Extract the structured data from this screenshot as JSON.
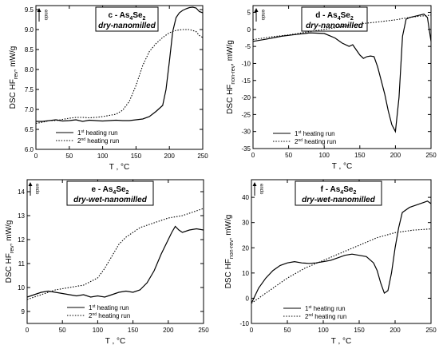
{
  "chart_data": [
    {
      "type": "line",
      "panel_label": "c - As",
      "panel_sub": "4",
      "panel_label_tail": "Se",
      "panel_sub2": "2",
      "subtitle": "dry-nanomilled",
      "endo_label": "endo",
      "xlabel": "T  ,  °C",
      "ylabel_main": "DSC  HF",
      "ylabel_sub": "rev",
      "ylabel_unit": ",  mW/g",
      "xlim": [
        0,
        250
      ],
      "ylim": [
        6.0,
        9.6
      ],
      "xticks": [
        "0",
        "50",
        "100",
        "150",
        "200",
        "250"
      ],
      "yticks": [
        "6.0",
        "6.5",
        "7.0",
        "7.5",
        "8.0",
        "8.5",
        "9.0",
        "9.5"
      ],
      "legend_position": "bottom-left",
      "series": [
        {
          "name": "1st heating run",
          "name_main": "1",
          "name_sup": "st",
          "name_tail": " heating run",
          "style": "solid",
          "x": [
            0,
            10,
            20,
            30,
            40,
            50,
            60,
            70,
            80,
            90,
            100,
            110,
            120,
            130,
            140,
            150,
            160,
            170,
            180,
            190,
            195,
            200,
            205,
            210,
            215,
            220,
            225,
            230,
            235,
            240,
            245,
            250
          ],
          "y": [
            6.7,
            6.7,
            6.72,
            6.74,
            6.71,
            6.72,
            6.74,
            6.7,
            6.73,
            6.72,
            6.71,
            6.72,
            6.73,
            6.72,
            6.72,
            6.74,
            6.76,
            6.82,
            6.95,
            7.1,
            7.5,
            8.2,
            8.95,
            9.3,
            9.42,
            9.48,
            9.52,
            9.55,
            9.56,
            9.54,
            9.45,
            9.42
          ]
        },
        {
          "name": "2nd heating run",
          "name_main": "2",
          "name_sup": "nd",
          "name_tail": " heating run",
          "style": "dotted",
          "x": [
            0,
            10,
            20,
            30,
            40,
            50,
            60,
            70,
            80,
            90,
            100,
            110,
            120,
            130,
            140,
            150,
            160,
            170,
            180,
            190,
            200,
            210,
            220,
            230,
            240,
            245,
            250
          ],
          "y": [
            6.65,
            6.68,
            6.72,
            6.72,
            6.75,
            6.78,
            6.8,
            6.8,
            6.79,
            6.8,
            6.82,
            6.85,
            6.88,
            6.98,
            7.2,
            7.6,
            8.1,
            8.45,
            8.65,
            8.8,
            8.92,
            8.98,
            9.0,
            9.0,
            8.95,
            8.85,
            8.8
          ]
        }
      ]
    },
    {
      "type": "line",
      "panel_label": "d - As",
      "panel_sub": "4",
      "panel_label_tail": "Se",
      "panel_sub2": "2",
      "subtitle": "dry-nanomilled",
      "endo_label": "endo",
      "xlabel": "T  ,  °C",
      "ylabel_main": "DSC  HF",
      "ylabel_sub": "non-rev",
      "ylabel_unit": ",  mW/g",
      "xlim": [
        0,
        250
      ],
      "ylim": [
        -35,
        7
      ],
      "xticks": [
        "0",
        "50",
        "100",
        "150",
        "200",
        "250"
      ],
      "yticks": [
        "-35",
        "-30",
        "-25",
        "-20",
        "-15",
        "-10",
        "-5",
        "0",
        "5"
      ],
      "legend_position": "bottom-left",
      "series": [
        {
          "name": "1st heating run",
          "name_main": "1",
          "name_sup": "st",
          "name_tail": " heating run",
          "style": "solid",
          "x": [
            0,
            20,
            40,
            60,
            80,
            100,
            115,
            125,
            135,
            140,
            145,
            150,
            155,
            160,
            165,
            170,
            175,
            180,
            185,
            190,
            195,
            200,
            205,
            210,
            215,
            220,
            230,
            240,
            245,
            250
          ],
          "y": [
            -3.5,
            -2.8,
            -2.0,
            -1.5,
            -1.0,
            -1.2,
            -2.5,
            -4.0,
            -5.0,
            -4.5,
            -6.0,
            -7.5,
            -8.5,
            -8.0,
            -7.8,
            -8.0,
            -11.0,
            -15.0,
            -19.0,
            -24.0,
            -28.0,
            -30.0,
            -20.0,
            -2.0,
            3.0,
            3.5,
            4.0,
            4.5,
            3.5,
            -3.5
          ]
        },
        {
          "name": "2nd heating run",
          "name_main": "2",
          "name_sup": "nd",
          "name_tail": " heating run",
          "style": "dotted",
          "x": [
            0,
            25,
            50,
            75,
            100,
            125,
            150,
            175,
            200,
            210,
            220,
            230,
            240,
            250
          ],
          "y": [
            -3.0,
            -2.2,
            -1.6,
            -0.8,
            0.0,
            0.8,
            1.6,
            2.2,
            2.8,
            3.2,
            3.5,
            3.8,
            4.0,
            4.2
          ]
        }
      ]
    },
    {
      "type": "line",
      "panel_label": "e - As",
      "panel_sub": "4",
      "panel_label_tail": "Se",
      "panel_sub2": "2",
      "subtitle": "dry-wet-nanomilled",
      "endo_label": "endo",
      "xlabel": "T  ,  °C",
      "ylabel_main": "DSC  HF",
      "ylabel_sub": "rev",
      "ylabel_unit": ",  mW/g",
      "xlim": [
        0,
        250
      ],
      "ylim": [
        8.5,
        14.5
      ],
      "xticks": [
        "0",
        "50",
        "100",
        "150",
        "200",
        "250"
      ],
      "yticks": [
        "9",
        "10",
        "11",
        "12",
        "13",
        "14"
      ],
      "legend_position": "bottom-center",
      "series": [
        {
          "name": "1st heating run",
          "name_main": "1",
          "name_sup": "st",
          "name_tail": " heating run",
          "style": "solid",
          "x": [
            0,
            10,
            20,
            30,
            40,
            50,
            60,
            70,
            80,
            90,
            100,
            110,
            120,
            130,
            140,
            150,
            160,
            170,
            180,
            190,
            200,
            205,
            210,
            215,
            220,
            230,
            240,
            250
          ],
          "y": [
            9.6,
            9.7,
            9.8,
            9.85,
            9.8,
            9.75,
            9.7,
            9.65,
            9.7,
            9.6,
            9.65,
            9.6,
            9.7,
            9.8,
            9.85,
            9.8,
            9.9,
            10.2,
            10.7,
            11.4,
            12.0,
            12.3,
            12.55,
            12.4,
            12.3,
            12.4,
            12.45,
            12.4
          ]
        },
        {
          "name": "2nd heating run",
          "name_main": "2",
          "name_sup": "nd",
          "name_tail": " heating run",
          "style": "dotted",
          "x": [
            0,
            20,
            40,
            60,
            80,
            100,
            110,
            120,
            130,
            140,
            150,
            160,
            180,
            200,
            220,
            240,
            250
          ],
          "y": [
            9.5,
            9.7,
            9.9,
            10.0,
            10.1,
            10.4,
            10.8,
            11.3,
            11.8,
            12.1,
            12.3,
            12.5,
            12.7,
            12.9,
            13.0,
            13.2,
            13.3
          ]
        }
      ]
    },
    {
      "type": "line",
      "panel_label": "f - As",
      "panel_sub": "4",
      "panel_label_tail": "Se",
      "panel_sub2": "2",
      "subtitle": "dry-wet-nanomilled",
      "endo_label": "endo",
      "xlabel": "T  ,  °C",
      "ylabel_main": "DSC  HF",
      "ylabel_sub": "non-rev",
      "ylabel_unit": ",  mW/g",
      "xlim": [
        0,
        250
      ],
      "ylim": [
        -10,
        47
      ],
      "xticks": [
        "0",
        "50",
        "100",
        "150",
        "200",
        "250"
      ],
      "yticks": [
        "-10",
        "0",
        "10",
        "20",
        "30",
        "40"
      ],
      "legend_position": "bottom-center",
      "series": [
        {
          "name": "1st heating run",
          "name_main": "1",
          "name_sup": "st",
          "name_tail": " heating run",
          "style": "solid",
          "x": [
            0,
            10,
            20,
            30,
            40,
            50,
            60,
            70,
            80,
            90,
            100,
            110,
            120,
            130,
            140,
            150,
            160,
            170,
            175,
            180,
            185,
            190,
            195,
            200,
            205,
            210,
            220,
            230,
            240,
            245,
            250
          ],
          "y": [
            -2,
            4,
            8,
            11,
            13,
            14,
            14.5,
            14,
            13.8,
            14,
            14.5,
            15,
            16,
            17,
            17.5,
            17,
            16.5,
            14,
            11,
            6,
            2,
            3,
            10,
            20,
            28,
            34,
            36,
            37,
            38,
            38.5,
            37.5
          ]
        },
        {
          "name": "2nd heating run",
          "name_main": "2",
          "name_sup": "nd",
          "name_tail": " heating run",
          "style": "dotted",
          "x": [
            0,
            25,
            50,
            75,
            100,
            125,
            150,
            175,
            200,
            225,
            250
          ],
          "y": [
            -2,
            3,
            8,
            12,
            15,
            18,
            21,
            24,
            26,
            27,
            27.5
          ]
        }
      ]
    }
  ]
}
